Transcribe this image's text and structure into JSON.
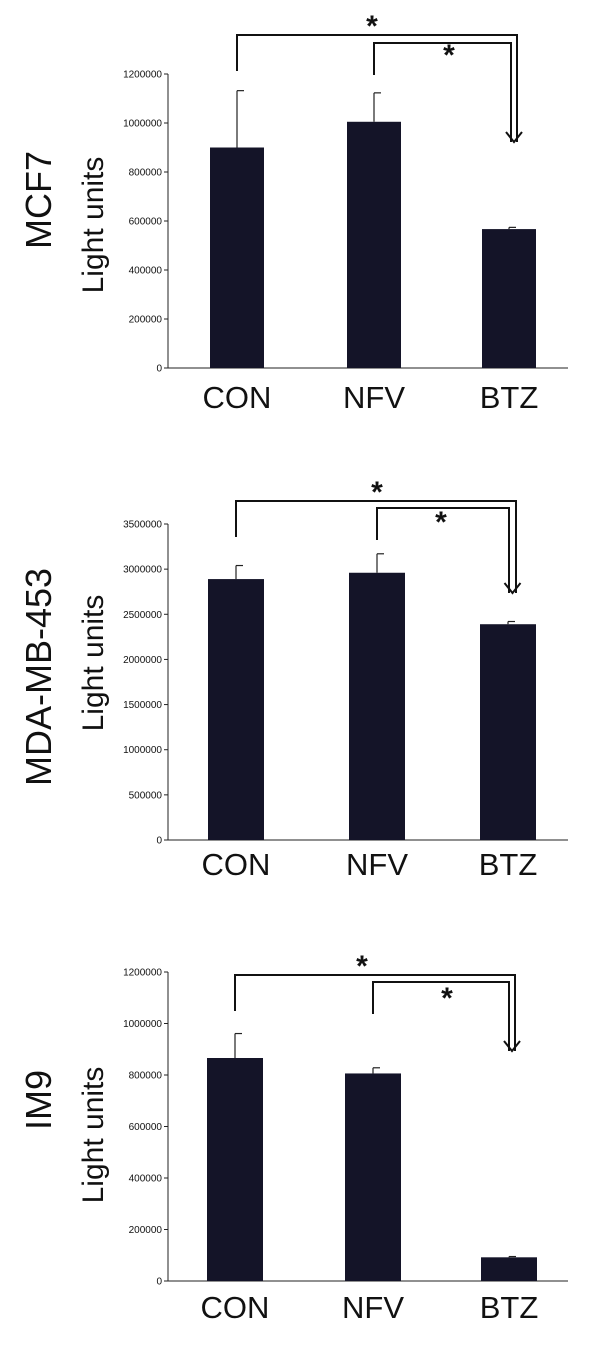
{
  "figure": {
    "panels": [
      {
        "row_label": "MCF7",
        "ylabel": "Light units",
        "star_outer": "*",
        "star_inner": "*"
      },
      {
        "row_label": "MDA-MB-453",
        "ylabel": "Light units",
        "star_outer": "*",
        "star_inner": "*"
      },
      {
        "row_label": "IM9",
        "ylabel": "Light units",
        "star_outer": "*",
        "star_inner": "*"
      }
    ]
  },
  "chart_data": [
    {
      "type": "bar",
      "title": "",
      "xlabel": "",
      "ylabel": "Light units",
      "categories": [
        "CON",
        "NFV",
        "BTZ"
      ],
      "values": [
        900000,
        1005000,
        567000
      ],
      "error": [
        232000,
        118000,
        7000
      ],
      "ylim": [
        0,
        1200000
      ],
      "yticks": [
        0,
        200000,
        400000,
        600000,
        800000,
        1000000,
        1200000
      ],
      "ytick_labels": [
        "0",
        "200000",
        "400000",
        "600000",
        "800000",
        "1000000",
        "1200000"
      ],
      "significance": [
        {
          "from": "CON",
          "to": "BTZ",
          "label": "*"
        },
        {
          "from": "NFV",
          "to": "BTZ",
          "label": "*"
        }
      ],
      "bar_color": "#141428"
    },
    {
      "type": "bar",
      "title": "",
      "xlabel": "",
      "ylabel": "Light units",
      "categories": [
        "CON",
        "NFV",
        "BTZ"
      ],
      "values": [
        2890000,
        2960000,
        2390000
      ],
      "error": [
        150000,
        210000,
        30000
      ],
      "ylim": [
        0,
        3500000
      ],
      "yticks": [
        0,
        500000,
        1000000,
        1500000,
        2000000,
        2500000,
        3000000,
        3500000
      ],
      "ytick_labels": [
        "0",
        "500000",
        "1000000",
        "1500000",
        "2000000",
        "2500000",
        "3000000",
        "3500000"
      ],
      "significance": [
        {
          "from": "CON",
          "to": "BTZ",
          "label": "*"
        },
        {
          "from": "NFV",
          "to": "BTZ",
          "label": "*"
        }
      ],
      "bar_color": "#141428"
    },
    {
      "type": "bar",
      "title": "",
      "xlabel": "",
      "ylabel": "Light units",
      "categories": [
        "CON",
        "NFV",
        "BTZ"
      ],
      "values": [
        866000,
        806000,
        92000
      ],
      "error": [
        95000,
        22000,
        3000
      ],
      "ylim": [
        0,
        1200000
      ],
      "yticks": [
        0,
        200000,
        400000,
        600000,
        800000,
        1000000,
        1200000
      ],
      "ytick_labels": [
        "0",
        "200000",
        "400000",
        "600000",
        "800000",
        "1000000",
        "1200000"
      ],
      "significance": [
        {
          "from": "CON",
          "to": "BTZ",
          "label": "*"
        },
        {
          "from": "NFV",
          "to": "BTZ",
          "label": "*"
        }
      ],
      "bar_color": "#141428"
    }
  ]
}
